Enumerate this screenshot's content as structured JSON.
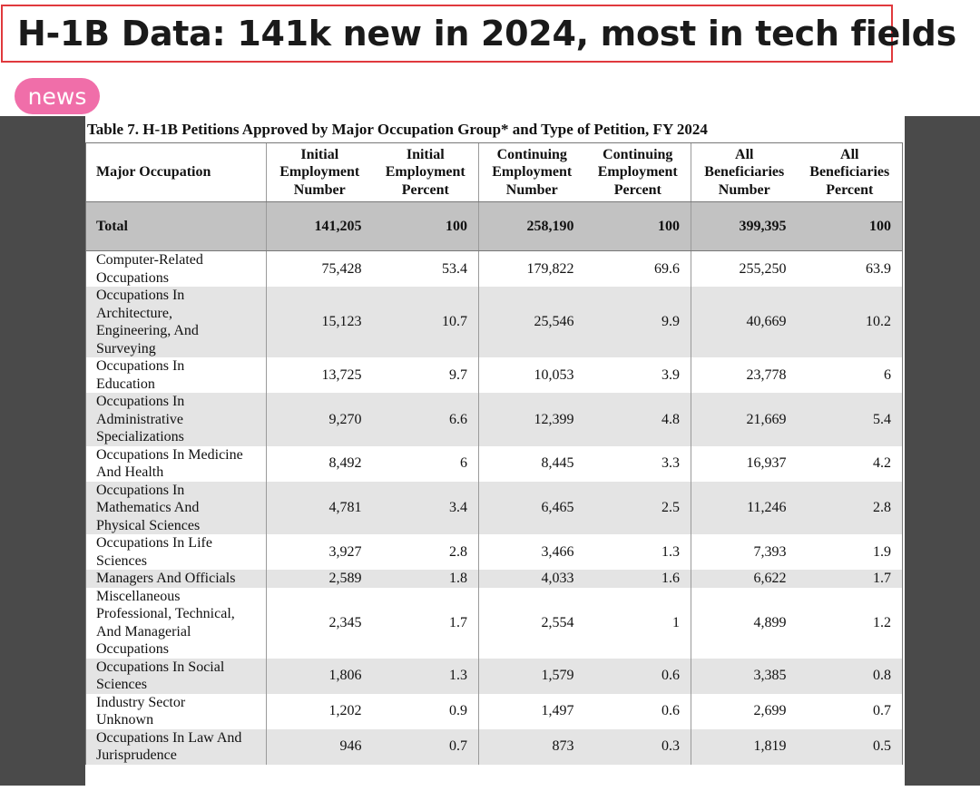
{
  "header": {
    "title": "H-1B Data: 141k new in 2024, most in tech fields",
    "tag": "news"
  },
  "document": {
    "caption": "Table 7. H-1B Petitions Approved by Major Occupation Group* and Type of Petition, FY 2024",
    "columns": [
      [
        "Major Occupation"
      ],
      [
        "Initial",
        "Employment",
        "Number"
      ],
      [
        "Initial",
        "Employment",
        "Percent"
      ],
      [
        "Continuing",
        "Employment",
        "Number"
      ],
      [
        "Continuing",
        "Employment",
        "Percent"
      ],
      [
        "All",
        "Beneficiaries",
        "Number"
      ],
      [
        "All",
        "Beneficiaries",
        "Percent"
      ]
    ],
    "total": [
      "Total",
      "141,205",
      "100",
      "258,190",
      "100",
      "399,395",
      "100"
    ],
    "rows": [
      {
        "occupation": [
          "Computer-Related",
          "Occupations"
        ],
        "values": [
          "75,428",
          "53.4",
          "179,822",
          "69.6",
          "255,250",
          "63.9"
        ]
      },
      {
        "occupation": [
          "Occupations In",
          "Architecture,",
          "Engineering, And",
          "Surveying"
        ],
        "values": [
          "15,123",
          "10.7",
          "25,546",
          "9.9",
          "40,669",
          "10.2"
        ]
      },
      {
        "occupation": [
          "Occupations In",
          "Education"
        ],
        "values": [
          "13,725",
          "9.7",
          "10,053",
          "3.9",
          "23,778",
          "6"
        ]
      },
      {
        "occupation": [
          "Occupations In",
          "Administrative",
          "Specializations"
        ],
        "values": [
          "9,270",
          "6.6",
          "12,399",
          "4.8",
          "21,669",
          "5.4"
        ]
      },
      {
        "occupation": [
          "Occupations In Medicine",
          "And Health"
        ],
        "values": [
          "8,492",
          "6",
          "8,445",
          "3.3",
          "16,937",
          "4.2"
        ]
      },
      {
        "occupation": [
          "Occupations In",
          "Mathematics And",
          "Physical Sciences"
        ],
        "values": [
          "4,781",
          "3.4",
          "6,465",
          "2.5",
          "11,246",
          "2.8"
        ]
      },
      {
        "occupation": [
          "Occupations In Life",
          "Sciences"
        ],
        "values": [
          "3,927",
          "2.8",
          "3,466",
          "1.3",
          "7,393",
          "1.9"
        ]
      },
      {
        "occupation": [
          "Managers And Officials"
        ],
        "values": [
          "2,589",
          "1.8",
          "4,033",
          "1.6",
          "6,622",
          "1.7"
        ]
      },
      {
        "occupation": [
          "Miscellaneous",
          "Professional, Technical,",
          "And Managerial",
          "Occupations"
        ],
        "values": [
          "2,345",
          "1.7",
          "2,554",
          "1",
          "4,899",
          "1.2"
        ]
      },
      {
        "occupation": [
          "Occupations In Social",
          "Sciences"
        ],
        "values": [
          "1,806",
          "1.3",
          "1,579",
          "0.6",
          "3,385",
          "0.8"
        ]
      },
      {
        "occupation": [
          "Industry Sector",
          "Unknown"
        ],
        "values": [
          "1,202",
          "0.9",
          "1,497",
          "0.6",
          "2,699",
          "0.7"
        ]
      },
      {
        "occupation": [
          "Occupations In Law And",
          "Jurisprudence"
        ],
        "values": [
          "946",
          "0.7",
          "873",
          "0.3",
          "1,819",
          "0.5"
        ]
      }
    ]
  },
  "colors": {
    "title_border": "#e0393d",
    "tag_bg": "#f06ea9",
    "viewer_bg": "#4a4a4a",
    "total_row_bg": "#c2c2c2",
    "alt_row_bg": "#e4e4e4"
  }
}
